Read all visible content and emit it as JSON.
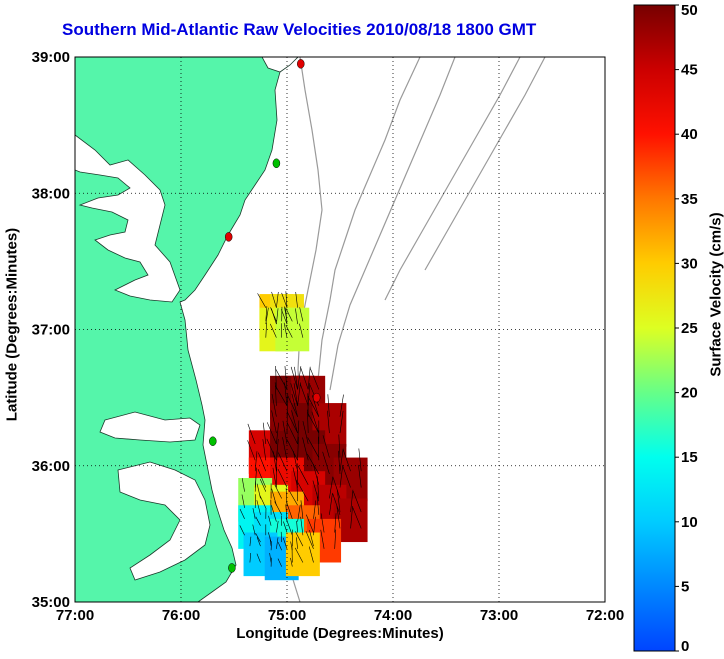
{
  "title": "Southern Mid-Atlantic Raw Velocities 2010/08/18 1800 GMT",
  "axes": {
    "xlabel": "Longitude (Degrees:Minutes)",
    "ylabel": "Latitude (Degrees:Minutes)",
    "x_ticks": [
      "77:00",
      "76:00",
      "75:00",
      "74:00",
      "73:00",
      "72:00"
    ],
    "y_ticks": [
      "39:00",
      "38:00",
      "37:00",
      "36:00",
      "35:00"
    ],
    "xlim": [
      -77,
      -72
    ],
    "ylim": [
      35,
      39
    ],
    "grid": "dotted"
  },
  "colorbar": {
    "label": "Surface Velocity (cm/s)",
    "ticks": [
      "50",
      "45",
      "40",
      "35",
      "30",
      "25",
      "20",
      "15",
      "10",
      "5",
      "0"
    ],
    "range": [
      0,
      50
    ]
  },
  "colors": {
    "land": "#55f5aa",
    "water": "#ffffff",
    "title": "#0000e0",
    "bathymetry": "#999999",
    "station_active": "#00c000",
    "station_inactive": "#e00000"
  },
  "stations": [
    {
      "lon": -74.87,
      "lat": 38.95,
      "status": "inactive"
    },
    {
      "lon": -75.1,
      "lat": 38.22,
      "status": "active"
    },
    {
      "lon": -75.55,
      "lat": 37.68,
      "status": "inactive"
    },
    {
      "lon": -74.72,
      "lat": 36.5,
      "status": "inactive"
    },
    {
      "lon": -75.7,
      "lat": 36.18,
      "status": "active"
    },
    {
      "lon": -75.52,
      "lat": 35.25,
      "status": "active"
    }
  ],
  "chart_data": {
    "type": "heatmap",
    "variable": "surface velocity (cm/s)",
    "cells_lon_lat_speed": [
      [
        -75.1,
        37.1,
        30
      ],
      [
        -75.0,
        37.1,
        28
      ],
      [
        -75.1,
        37.0,
        26
      ],
      [
        -74.95,
        37.0,
        24
      ],
      [
        -75.0,
        36.5,
        50
      ],
      [
        -74.9,
        36.5,
        50
      ],
      [
        -74.8,
        36.5,
        48
      ],
      [
        -75.0,
        36.3,
        49
      ],
      [
        -74.8,
        36.3,
        50
      ],
      [
        -74.6,
        36.3,
        47
      ],
      [
        -75.2,
        36.1,
        44
      ],
      [
        -75.0,
        36.1,
        50
      ],
      [
        -74.8,
        36.1,
        50
      ],
      [
        -74.6,
        36.0,
        49
      ],
      [
        -74.4,
        35.9,
        48
      ],
      [
        -75.2,
        35.9,
        40
      ],
      [
        -75.0,
        35.9,
        42
      ],
      [
        -74.8,
        35.8,
        44
      ],
      [
        -74.6,
        35.7,
        46
      ],
      [
        -74.4,
        35.6,
        47
      ],
      [
        -75.3,
        35.75,
        22
      ],
      [
        -75.15,
        35.7,
        26
      ],
      [
        -75.0,
        35.65,
        32
      ],
      [
        -74.85,
        35.55,
        36
      ],
      [
        -74.65,
        35.45,
        38
      ],
      [
        -75.3,
        35.55,
        14
      ],
      [
        -75.15,
        35.5,
        12
      ],
      [
        -75.0,
        35.45,
        16
      ],
      [
        -75.25,
        35.35,
        10
      ],
      [
        -75.05,
        35.32,
        8
      ],
      [
        -74.85,
        35.35,
        30
      ]
    ]
  }
}
